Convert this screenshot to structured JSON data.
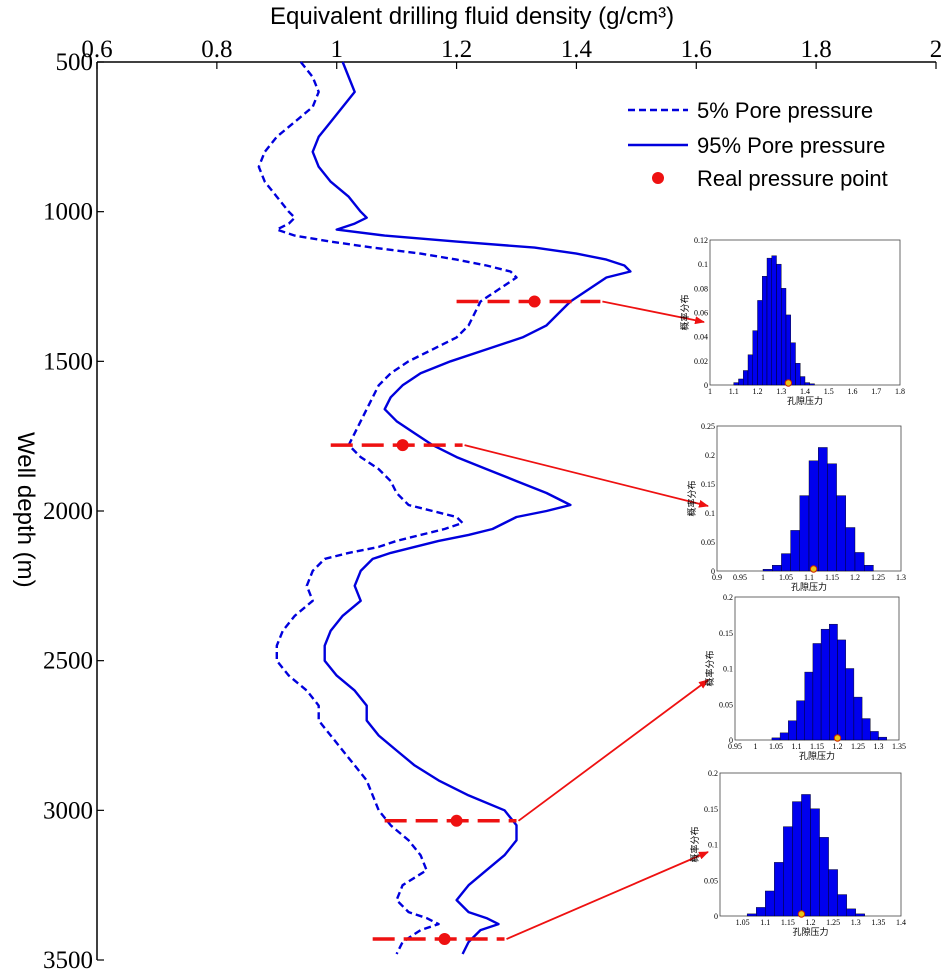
{
  "chart_data": {
    "type": "line",
    "title": "Equivalent drilling fluid density (g/cm³)",
    "xlabel": "Equivalent drilling fluid density (g/cm³)",
    "ylabel": "Well depth (m)",
    "xlim": [
      0.6,
      2.0
    ],
    "ylim": [
      500,
      3500
    ],
    "y_inverted": true,
    "x_axis_position": "top",
    "x_ticks": [
      "0.6",
      "0.8",
      "1",
      "1.2",
      "1.4",
      "1.6",
      "1.8",
      "2"
    ],
    "y_ticks": [
      "500",
      "1000",
      "1500",
      "2000",
      "2500",
      "3000",
      "3500"
    ],
    "legend_placement": "top-right",
    "legend": [
      "5% Pore pressure",
      "95% Pore pressure",
      "Real pressure point"
    ],
    "colors": {
      "series": "#0000dd",
      "point": "#ee1111",
      "bar": "#0000ee",
      "marker": "#e6c619"
    },
    "series": [
      {
        "name": "5% Pore pressure",
        "style": "dashed",
        "x": [
          0.94,
          0.96,
          0.97,
          0.96,
          0.93,
          0.9,
          0.88,
          0.87,
          0.88,
          0.9,
          0.92,
          0.93,
          0.92,
          0.9,
          0.93,
          0.99,
          1.06,
          1.14,
          1.2,
          1.25,
          1.29,
          1.3,
          1.27,
          1.24,
          1.23,
          1.22,
          1.2,
          1.16,
          1.12,
          1.09,
          1.07,
          1.06,
          1.05,
          1.04,
          1.03,
          1.02,
          1.04,
          1.07,
          1.09,
          1.1,
          1.12,
          1.16,
          1.2,
          1.21,
          1.18,
          1.14,
          1.1,
          1.07,
          1.02,
          0.98,
          0.96,
          0.95,
          0.96,
          0.93,
          0.91,
          0.9,
          0.9,
          0.92,
          0.95,
          0.97,
          0.97,
          0.99,
          1.01,
          1.03,
          1.05,
          1.06,
          1.07,
          1.09,
          1.12,
          1.14,
          1.15,
          1.11,
          1.1,
          1.12,
          1.15,
          1.17,
          1.14,
          1.11,
          1.1
        ],
        "y": [
          500,
          550,
          600,
          650,
          700,
          750,
          800,
          850,
          900,
          950,
          1000,
          1020,
          1040,
          1060,
          1080,
          1100,
          1120,
          1140,
          1160,
          1180,
          1200,
          1220,
          1260,
          1300,
          1340,
          1380,
          1420,
          1460,
          1500,
          1540,
          1580,
          1620,
          1660,
          1700,
          1740,
          1780,
          1820,
          1860,
          1900,
          1940,
          1980,
          2000,
          2020,
          2040,
          2060,
          2080,
          2100,
          2120,
          2140,
          2160,
          2200,
          2250,
          2300,
          2350,
          2400,
          2450,
          2500,
          2550,
          2600,
          2650,
          2700,
          2750,
          2800,
          2850,
          2900,
          2950,
          3000,
          3050,
          3100,
          3150,
          3200,
          3250,
          3300,
          3340,
          3360,
          3380,
          3400,
          3440,
          3480
        ]
      },
      {
        "name": "95% Pore pressure",
        "style": "solid",
        "x": [
          1.01,
          1.02,
          1.03,
          1.01,
          0.99,
          0.97,
          0.96,
          0.97,
          0.99,
          1.02,
          1.04,
          1.05,
          1.03,
          1.0,
          1.08,
          1.2,
          1.33,
          1.4,
          1.45,
          1.48,
          1.49,
          1.45,
          1.42,
          1.39,
          1.37,
          1.35,
          1.31,
          1.25,
          1.19,
          1.14,
          1.11,
          1.09,
          1.08,
          1.1,
          1.13,
          1.16,
          1.2,
          1.25,
          1.3,
          1.35,
          1.39,
          1.35,
          1.3,
          1.28,
          1.26,
          1.22,
          1.17,
          1.13,
          1.09,
          1.06,
          1.04,
          1.03,
          1.04,
          1.01,
          0.99,
          0.98,
          0.98,
          1.0,
          1.03,
          1.05,
          1.05,
          1.07,
          1.1,
          1.13,
          1.17,
          1.22,
          1.28,
          1.3,
          1.3,
          1.28,
          1.25,
          1.22,
          1.2,
          1.22,
          1.25,
          1.27,
          1.24,
          1.22,
          1.21
        ],
        "y": [
          500,
          550,
          600,
          650,
          700,
          750,
          800,
          850,
          900,
          950,
          1000,
          1020,
          1040,
          1060,
          1080,
          1100,
          1120,
          1140,
          1160,
          1180,
          1200,
          1220,
          1260,
          1300,
          1340,
          1380,
          1420,
          1460,
          1500,
          1540,
          1580,
          1620,
          1660,
          1700,
          1740,
          1780,
          1820,
          1860,
          1900,
          1940,
          1980,
          2000,
          2020,
          2040,
          2060,
          2080,
          2100,
          2120,
          2140,
          2160,
          2200,
          2250,
          2300,
          2350,
          2400,
          2450,
          2500,
          2550,
          2600,
          2650,
          2700,
          2750,
          2800,
          2850,
          2900,
          2950,
          3000,
          3050,
          3100,
          3150,
          3200,
          3250,
          3300,
          3340,
          3360,
          3380,
          3400,
          3440,
          3480
        ]
      }
    ],
    "real_points": [
      {
        "x": 1.33,
        "y": 1300,
        "x_from": 1.2,
        "x_to": 1.44
      },
      {
        "x": 1.11,
        "y": 1780,
        "x_from": 0.99,
        "x_to": 1.21
      },
      {
        "x": 1.2,
        "y": 3035,
        "x_from": 1.08,
        "x_to": 1.3
      },
      {
        "x": 1.18,
        "y": 3430,
        "x_from": 1.06,
        "x_to": 1.28
      }
    ],
    "insets": [
      {
        "type": "bar",
        "xlabel": "孔隙压力",
        "ylabel": "概率分布",
        "xlim": [
          1.0,
          1.8
        ],
        "ylim": [
          0,
          0.12
        ],
        "x_ticks": [
          "1",
          "1.1",
          "1.2",
          "1.3",
          "1.4",
          "1.5",
          "1.6",
          "1.7",
          "1.8"
        ],
        "y_ticks": [
          "0",
          "0.02",
          "0.04",
          "0.06",
          "0.08",
          "0.1",
          "0.12"
        ],
        "bin_start": 1.1,
        "bin_width": 0.02,
        "values": [
          0.002,
          0.005,
          0.012,
          0.025,
          0.045,
          0.07,
          0.09,
          0.105,
          0.107,
          0.1,
          0.08,
          0.058,
          0.035,
          0.018,
          0.007,
          0.002,
          0.001
        ],
        "marker": 1.33
      },
      {
        "type": "bar",
        "xlabel": "孔隙压力",
        "ylabel": "概率分布",
        "xlim": [
          0.9,
          1.3
        ],
        "ylim": [
          0,
          0.25
        ],
        "x_ticks": [
          "0.9",
          "0.95",
          "1",
          "1.05",
          "1.1",
          "1.15",
          "1.2",
          "1.25",
          "1.3"
        ],
        "y_ticks": [
          "0",
          "0.05",
          "0.1",
          "0.15",
          "0.2",
          "0.25"
        ],
        "bin_start": 1.0,
        "bin_width": 0.02,
        "values": [
          0.003,
          0.01,
          0.03,
          0.07,
          0.13,
          0.19,
          0.213,
          0.185,
          0.13,
          0.075,
          0.032,
          0.01
        ],
        "marker": 1.11
      },
      {
        "type": "bar",
        "xlabel": "孔隙压力",
        "ylabel": "概率分布",
        "xlim": [
          0.95,
          1.35
        ],
        "ylim": [
          0,
          0.2
        ],
        "x_ticks": [
          "0.95",
          "1",
          "1.05",
          "1.1",
          "1.15",
          "1.2",
          "1.25",
          "1.3",
          "1.35"
        ],
        "y_ticks": [
          "0",
          "0.05",
          "0.1",
          "0.15",
          "0.2"
        ],
        "bin_start": 1.04,
        "bin_width": 0.02,
        "values": [
          0.003,
          0.01,
          0.027,
          0.055,
          0.095,
          0.135,
          0.155,
          0.162,
          0.14,
          0.1,
          0.06,
          0.03,
          0.012,
          0.004
        ],
        "marker": 1.2
      },
      {
        "type": "bar",
        "xlabel": "孔隙压力",
        "ylabel": "概率分布",
        "xlim": [
          1.0,
          1.4
        ],
        "ylim": [
          0,
          0.2
        ],
        "x_ticks": [
          "1.05",
          "1.1",
          "1.15",
          "1.2",
          "1.25",
          "1.3",
          "1.35",
          "1.4"
        ],
        "y_ticks": [
          "0",
          "0.05",
          "0.1",
          "0.15",
          "0.2"
        ],
        "bin_start": 1.06,
        "bin_width": 0.02,
        "values": [
          0.003,
          0.012,
          0.035,
          0.075,
          0.125,
          0.16,
          0.17,
          0.15,
          0.11,
          0.065,
          0.03,
          0.01,
          0.003
        ],
        "marker": 1.18
      }
    ]
  }
}
